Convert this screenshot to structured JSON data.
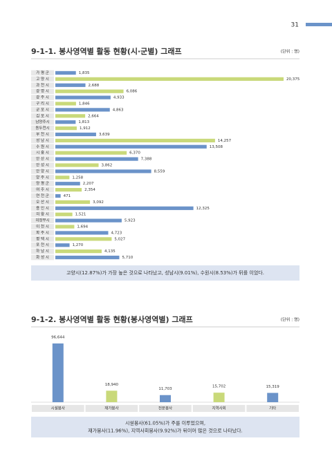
{
  "page_number": "31",
  "chart_data": [
    {
      "type": "bar",
      "orientation": "horizontal",
      "title": "9-1-1. 봉사영역별 활동 현황(시·군별) 그래프",
      "unit_label": "(단위 : 명)",
      "categories": [
        "가 평 군",
        "고 양 시",
        "과 천 시",
        "광 명 시",
        "광 주 시",
        "구 리 시",
        "군 포 시",
        "김 포 시",
        "남양주시",
        "동두천시",
        "부 천 시",
        "성 남 시",
        "수 원 시",
        "시 흥 시",
        "안 산 시",
        "안 성 시",
        "안 양 시",
        "양 주 시",
        "양 평 군",
        "여 주 시",
        "연 천 군",
        "오 산 시",
        "용 인 시",
        "의 왕 시",
        "의정부시",
        "이 천 시",
        "파 주 시",
        "평 택 시",
        "포 천 시",
        "하 남 시",
        "화 성 시"
      ],
      "values": [
        1835,
        20375,
        2688,
        6086,
        4933,
        1846,
        4863,
        2664,
        1813,
        1912,
        3639,
        14257,
        13508,
        6370,
        7388,
        3862,
        8559,
        1258,
        2207,
        2354,
        471,
        3092,
        12325,
        1521,
        5923,
        1694,
        4723,
        5027,
        1270,
        4135,
        5710
      ],
      "value_labels": [
        "1,835",
        "20,375",
        "2,688",
        "6,086",
        "4,933",
        "1,846",
        "4,863",
        "2,664",
        "1,813",
        "1,912",
        "3,639",
        "14,257",
        "13,508",
        "6,370",
        "7,388",
        "3,862",
        "8,559",
        "1,258",
        "2,207",
        "2,354",
        "471",
        "3,092",
        "12,325",
        "1,521",
        "5,923",
        "1,694",
        "4,723",
        "5,027",
        "1,270",
        "4,135",
        "5,710"
      ],
      "colors": [
        "#6b93c9",
        "#c9d97a"
      ],
      "note": [
        "고양시(12.87%)가 가장 높은 것으로 나타났고, 성남시(9.01%), 수원시(8.53%)가 뒤를 이었다."
      ]
    },
    {
      "type": "bar",
      "orientation": "vertical",
      "title": "9-1-2. 봉사영역별 활동 현황(봉사영역별) 그래프",
      "unit_label": "(단위 : 명)",
      "categories": [
        "시설봉사",
        "재가봉사",
        "전문봉사",
        "지역사회",
        "기타"
      ],
      "values": [
        96644,
        18940,
        11703,
        15702,
        15319
      ],
      "value_labels": [
        "96,644",
        "18,940",
        "11,703",
        "15,702",
        "15,319"
      ],
      "colors": [
        "#6b93c9",
        "#c9d97a"
      ],
      "note": [
        "시설봉사(61.05%)가 주를 이루었으며,",
        "재가봉사(11.96%), 지역사회봉사(9.92%)가 뒤이어 많은 것으로 나타났다."
      ]
    }
  ]
}
